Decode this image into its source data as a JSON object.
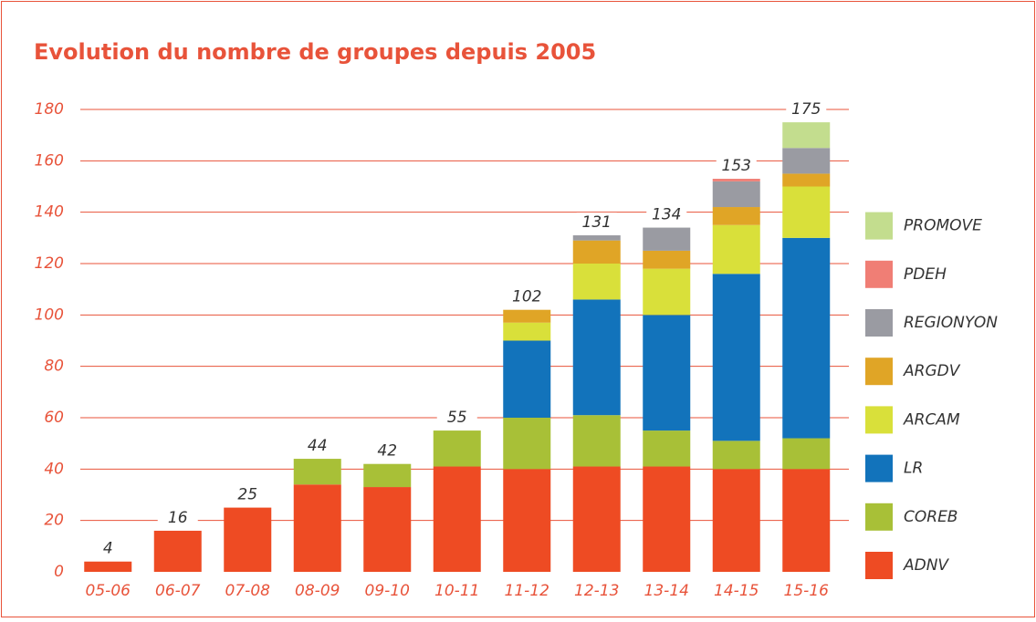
{
  "chart_data": {
    "type": "stacked_bar",
    "title": "Evolution du nombre de groupes depuis 2005",
    "categories": [
      "05-06",
      "06-07",
      "07-08",
      "08-09",
      "09-10",
      "10-11",
      "11-12",
      "12-13",
      "13-14",
      "14-15",
      "15-16"
    ],
    "series": [
      {
        "name": "ADNV",
        "color": "#ee4b23",
        "values": [
          4,
          16,
          25,
          34,
          33,
          41,
          40,
          41,
          41,
          40,
          40
        ]
      },
      {
        "name": "COREB",
        "color": "#a8c037",
        "values": [
          0,
          0,
          0,
          10,
          9,
          14,
          20,
          20,
          14,
          11,
          12
        ]
      },
      {
        "name": "LR",
        "color": "#1273bb",
        "values": [
          0,
          0,
          0,
          0,
          0,
          0,
          30,
          45,
          45,
          65,
          78
        ]
      },
      {
        "name": "ARCAM",
        "color": "#d9e03a",
        "values": [
          0,
          0,
          0,
          0,
          0,
          0,
          7,
          14,
          18,
          19,
          20
        ]
      },
      {
        "name": "ARGDV",
        "color": "#e0a526",
        "values": [
          0,
          0,
          0,
          0,
          0,
          0,
          5,
          9,
          7,
          7,
          5
        ]
      },
      {
        "name": "REGIONYON",
        "color": "#9a9ba2",
        "values": [
          0,
          0,
          0,
          0,
          0,
          0,
          0,
          2,
          9,
          10,
          10
        ]
      },
      {
        "name": "PDEH",
        "color": "#f07e75",
        "values": [
          0,
          0,
          0,
          0,
          0,
          0,
          0,
          0,
          0,
          1,
          0
        ]
      },
      {
        "name": "PROMOVE",
        "color": "#c3dd8e",
        "values": [
          0,
          0,
          0,
          0,
          0,
          0,
          0,
          0,
          0,
          0,
          10
        ]
      }
    ],
    "totals": [
      4,
      16,
      25,
      44,
      42,
      55,
      102,
      131,
      134,
      153,
      175
    ],
    "ylim": [
      0,
      180
    ],
    "yticks": [
      0,
      20,
      40,
      60,
      80,
      100,
      120,
      140,
      160,
      180
    ],
    "grid": true
  }
}
